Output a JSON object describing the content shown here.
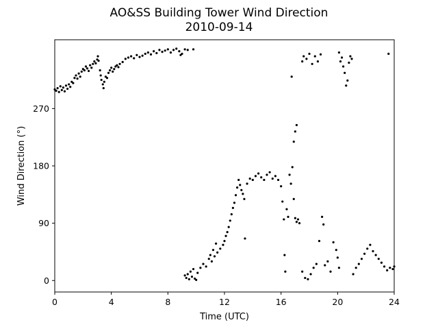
{
  "chart_data": {
    "type": "scatter",
    "title": "AO&SS Building Tower Wind Direction",
    "subtitle": "2010-09-14",
    "xlabel": "Time (UTC)",
    "ylabel": "Wind Direction (°)",
    "xlim": [
      0,
      24
    ],
    "ylim": [
      -18,
      378
    ],
    "xticks": [
      0,
      4,
      8,
      12,
      16,
      20,
      24
    ],
    "yticks": [
      0,
      90,
      180,
      270
    ],
    "grid": false,
    "legend": "none",
    "marker_color": "#000000",
    "series": [
      {
        "points": [
          [
            0.0,
            300
          ],
          [
            0.1,
            298
          ],
          [
            0.2,
            302
          ],
          [
            0.3,
            296
          ],
          [
            0.4,
            305
          ],
          [
            0.5,
            299
          ],
          [
            0.6,
            303
          ],
          [
            0.7,
            297
          ],
          [
            0.8,
            306
          ],
          [
            0.9,
            301
          ],
          [
            1.0,
            308
          ],
          [
            1.1,
            304
          ],
          [
            1.2,
            312
          ],
          [
            1.3,
            310
          ],
          [
            1.4,
            318
          ],
          [
            1.5,
            322
          ],
          [
            1.6,
            317
          ],
          [
            1.7,
            325
          ],
          [
            1.8,
            320
          ],
          [
            1.9,
            328
          ],
          [
            2.0,
            332
          ],
          [
            2.1,
            330
          ],
          [
            2.2,
            336
          ],
          [
            2.3,
            333
          ],
          [
            2.4,
            329
          ],
          [
            2.5,
            338
          ],
          [
            2.6,
            334
          ],
          [
            2.7,
            340
          ],
          [
            2.8,
            344
          ],
          [
            2.9,
            341
          ],
          [
            3.0,
            347
          ],
          [
            3.05,
            352
          ],
          [
            3.1,
            345
          ],
          [
            3.2,
            330
          ],
          [
            3.25,
            322
          ],
          [
            3.3,
            315
          ],
          [
            3.4,
            308
          ],
          [
            3.45,
            302
          ],
          [
            3.5,
            312
          ],
          [
            3.6,
            320
          ],
          [
            3.7,
            318
          ],
          [
            3.8,
            326
          ],
          [
            3.9,
            330
          ],
          [
            4.0,
            334
          ],
          [
            4.1,
            328
          ],
          [
            4.2,
            332
          ],
          [
            4.3,
            336
          ],
          [
            4.4,
            338
          ],
          [
            4.5,
            335
          ],
          [
            4.6,
            340
          ],
          [
            4.8,
            343
          ],
          [
            5.0,
            348
          ],
          [
            5.2,
            350
          ],
          [
            5.4,
            352
          ],
          [
            5.6,
            349
          ],
          [
            5.8,
            354
          ],
          [
            6.0,
            351
          ],
          [
            6.2,
            353
          ],
          [
            6.4,
            356
          ],
          [
            6.6,
            358
          ],
          [
            6.8,
            355
          ],
          [
            7.0,
            360
          ],
          [
            7.2,
            357
          ],
          [
            7.4,
            362
          ],
          [
            7.6,
            359
          ],
          [
            7.8,
            361
          ],
          [
            8.0,
            363
          ],
          [
            8.2,
            358
          ],
          [
            8.4,
            362
          ],
          [
            8.6,
            364
          ],
          [
            8.8,
            360
          ],
          [
            8.9,
            354
          ],
          [
            9.0,
            356
          ],
          [
            9.2,
            363
          ],
          [
            9.4,
            362
          ],
          [
            9.8,
            363
          ],
          [
            9.2,
            8
          ],
          [
            9.3,
            4
          ],
          [
            9.4,
            10
          ],
          [
            9.5,
            2
          ],
          [
            9.6,
            14
          ],
          [
            9.7,
            6
          ],
          [
            9.8,
            18
          ],
          [
            9.9,
            3
          ],
          [
            10.0,
            1
          ],
          [
            10.1,
            12
          ],
          [
            10.3,
            20
          ],
          [
            10.5,
            26
          ],
          [
            10.7,
            22
          ],
          [
            10.9,
            34
          ],
          [
            11.0,
            40
          ],
          [
            11.1,
            30
          ],
          [
            11.2,
            48
          ],
          [
            11.3,
            38
          ],
          [
            11.4,
            58
          ],
          [
            11.5,
            44
          ],
          [
            11.7,
            50
          ],
          [
            11.9,
            56
          ],
          [
            12.0,
            62
          ],
          [
            12.1,
            70
          ],
          [
            12.2,
            76
          ],
          [
            12.3,
            84
          ],
          [
            12.4,
            94
          ],
          [
            12.5,
            104
          ],
          [
            12.6,
            114
          ],
          [
            12.7,
            122
          ],
          [
            12.8,
            134
          ],
          [
            12.9,
            146
          ],
          [
            13.0,
            158
          ],
          [
            13.1,
            150
          ],
          [
            13.2,
            142
          ],
          [
            13.3,
            136
          ],
          [
            13.4,
            128
          ],
          [
            13.45,
            66
          ],
          [
            13.6,
            152
          ],
          [
            13.8,
            160
          ],
          [
            14.0,
            158
          ],
          [
            14.2,
            164
          ],
          [
            14.4,
            168
          ],
          [
            14.6,
            162
          ],
          [
            14.8,
            158
          ],
          [
            15.0,
            166
          ],
          [
            15.2,
            170
          ],
          [
            15.4,
            160
          ],
          [
            15.6,
            164
          ],
          [
            15.8,
            158
          ],
          [
            16.0,
            148
          ],
          [
            16.1,
            124
          ],
          [
            16.2,
            96
          ],
          [
            16.25,
            40
          ],
          [
            16.3,
            14
          ],
          [
            16.4,
            112
          ],
          [
            16.5,
            100
          ],
          [
            16.6,
            166
          ],
          [
            16.7,
            152
          ],
          [
            16.8,
            178
          ],
          [
            16.9,
            128
          ],
          [
            17.0,
            98
          ],
          [
            17.1,
            92
          ],
          [
            17.2,
            96
          ],
          [
            17.3,
            90
          ],
          [
            16.9,
            218
          ],
          [
            17.0,
            234
          ],
          [
            17.1,
            244
          ],
          [
            16.75,
            320
          ],
          [
            17.5,
            344
          ],
          [
            17.6,
            352
          ],
          [
            17.8,
            348
          ],
          [
            18.0,
            356
          ],
          [
            18.2,
            340
          ],
          [
            18.4,
            352
          ],
          [
            18.6,
            344
          ],
          [
            18.8,
            355
          ],
          [
            17.5,
            14
          ],
          [
            17.7,
            4
          ],
          [
            17.9,
            2
          ],
          [
            18.1,
            10
          ],
          [
            18.3,
            20
          ],
          [
            18.5,
            26
          ],
          [
            18.7,
            62
          ],
          [
            18.9,
            100
          ],
          [
            19.0,
            88
          ],
          [
            19.1,
            24
          ],
          [
            19.3,
            30
          ],
          [
            19.5,
            14
          ],
          [
            19.7,
            60
          ],
          [
            19.9,
            48
          ],
          [
            20.0,
            36
          ],
          [
            20.1,
            20
          ],
          [
            20.1,
            358
          ],
          [
            20.2,
            344
          ],
          [
            20.3,
            350
          ],
          [
            20.4,
            336
          ],
          [
            20.5,
            326
          ],
          [
            20.6,
            306
          ],
          [
            20.7,
            314
          ],
          [
            20.8,
            342
          ],
          [
            20.9,
            352
          ],
          [
            21.0,
            348
          ],
          [
            21.1,
            10
          ],
          [
            21.3,
            20
          ],
          [
            21.5,
            26
          ],
          [
            21.7,
            34
          ],
          [
            21.9,
            42
          ],
          [
            22.1,
            50
          ],
          [
            22.3,
            56
          ],
          [
            22.5,
            46
          ],
          [
            22.7,
            40
          ],
          [
            22.9,
            34
          ],
          [
            23.1,
            28
          ],
          [
            23.3,
            22
          ],
          [
            23.5,
            16
          ],
          [
            23.7,
            20
          ],
          [
            23.9,
            18
          ],
          [
            24.0,
            22
          ],
          [
            23.6,
            356
          ]
        ]
      }
    ]
  }
}
